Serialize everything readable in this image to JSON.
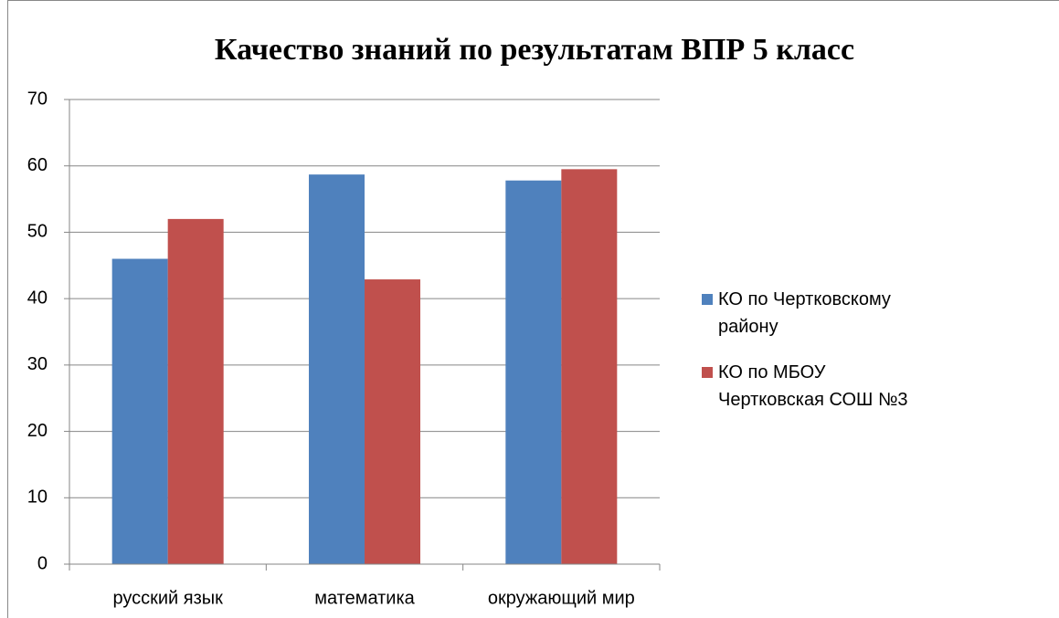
{
  "chart_data": {
    "type": "bar",
    "title": "Качество знаний по результатам ВПР 5 класс",
    "categories": [
      "русский язык",
      "математика",
      "окружающий мир"
    ],
    "series": [
      {
        "name": "КО по Чертковскому району",
        "color": "#4f81bd",
        "values": [
          46,
          58.7,
          57.8
        ]
      },
      {
        "name": "КО по МБОУ Чертковская СОШ №3",
        "color": "#c0504d",
        "values": [
          52,
          42.9,
          59.5
        ]
      }
    ],
    "ylim": [
      0,
      70
    ],
    "yticks": [
      0,
      10,
      20,
      30,
      40,
      50,
      60,
      70
    ],
    "grid": true,
    "legend": "right"
  }
}
